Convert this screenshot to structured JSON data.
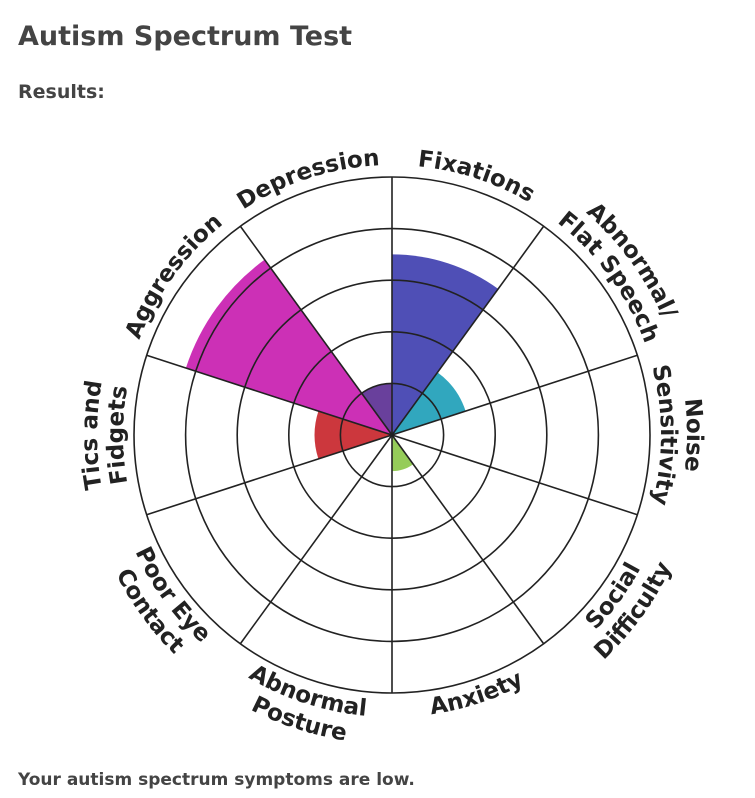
{
  "header": {
    "title": "Autism Spectrum Test",
    "subtitle": "Results:"
  },
  "chart_data": {
    "type": "polar-area",
    "categories": [
      [
        "Fixations"
      ],
      [
        "Abnormal/",
        "Flat Speech"
      ],
      [
        "Noise",
        "Sensitivity"
      ],
      [
        "Social",
        "Difficulty"
      ],
      [
        "Anxiety"
      ],
      [
        "Abnormal",
        "Posture"
      ],
      [
        "Poor Eye",
        "Contact"
      ],
      [
        "Tics and",
        "Fidgets"
      ],
      [
        "Aggression"
      ],
      [
        "Depression"
      ]
    ],
    "values": [
      3.5,
      1.5,
      0,
      0,
      0.7,
      0,
      0,
      1.5,
      4.2,
      1
    ],
    "colors": [
      "#4040b0",
      "#1f9fb8",
      null,
      null,
      "#8cc84b",
      null,
      null,
      "#c8262c",
      "#c81eb0",
      "#5c3094"
    ],
    "rlim": [
      0,
      5
    ],
    "rticks": [
      1,
      2,
      3,
      4,
      5
    ]
  },
  "footer": {
    "text": "Your autism spectrum symptoms are low."
  }
}
